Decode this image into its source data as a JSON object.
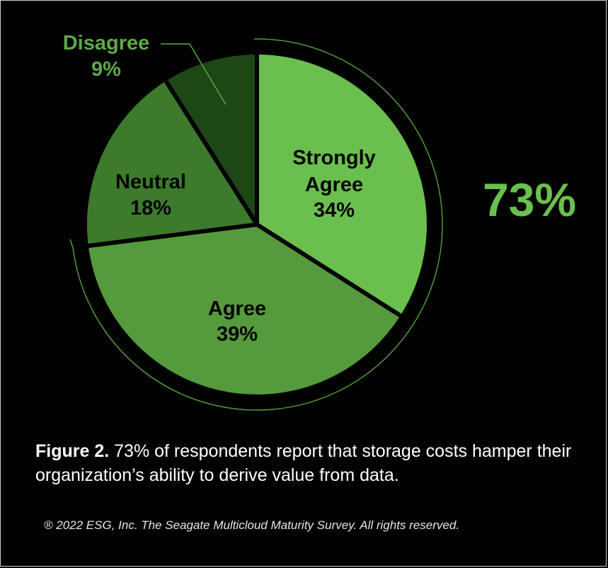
{
  "chart_data": {
    "type": "pie",
    "slices": [
      {
        "label": "Strongly Agree",
        "value": 34,
        "value_label": "34%",
        "color": "#6bbf4e",
        "label_color": "#000000"
      },
      {
        "label": "Agree",
        "value": 39,
        "value_label": "39%",
        "color": "#559a3c",
        "label_color": "#000000"
      },
      {
        "label": "Neutral",
        "value": 18,
        "value_label": "18%",
        "color": "#3d7a2c",
        "label_color": "#000000"
      },
      {
        "label": "Disagree",
        "value": 9,
        "value_label": "9%",
        "color": "#1d4715",
        "label_color": "#5ea84a"
      }
    ],
    "annotation": {
      "text": "73%",
      "color": "#6bbf4e"
    },
    "bracket_color": "#4f9a3a"
  },
  "caption": {
    "lead": "Figure 2.",
    "text": " 73% of respondents report that storage costs hamper their organization’s ability to derive value from data."
  },
  "copyright": "® 2022 ESG, Inc. The Seagate Multicloud Maturity Survey. All rights reserved."
}
